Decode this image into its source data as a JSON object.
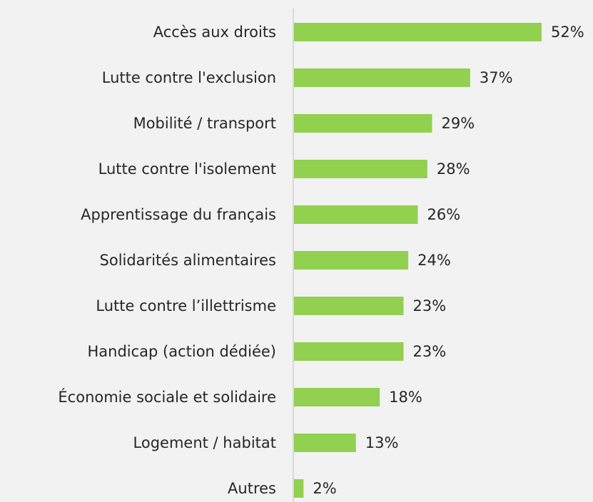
{
  "chart_data": {
    "type": "bar",
    "orientation": "horizontal",
    "categories": [
      "Accès aux droits",
      "Lutte contre l'exclusion",
      "Mobilité / transport",
      "Lutte contre l'isolement",
      "Apprentissage du français",
      "Solidarités alimentaires",
      "Lutte contre l’illettrisme",
      "Handicap (action dédiée)",
      "Économie sociale et solidaire",
      "Logement / habitat",
      "Autres"
    ],
    "values": [
      52,
      37,
      29,
      28,
      26,
      24,
      23,
      23,
      18,
      13,
      2
    ],
    "value_labels": [
      "52%",
      "37%",
      "29%",
      "28%",
      "26%",
      "24%",
      "23%",
      "23%",
      "18%",
      "13%",
      "2%"
    ],
    "color": "#92d050"
  }
}
